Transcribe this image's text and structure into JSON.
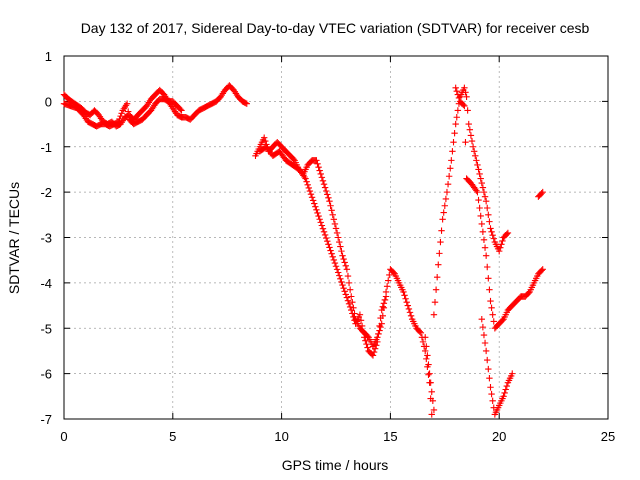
{
  "chart_data": {
    "type": "scatter",
    "title": "Day 132 of 2017, Sidereal Day-to-day VTEC variation (SDTVAR) for receiver cesb",
    "xlabel": "GPS time / hours",
    "ylabel": "SDTVAR / TECUs",
    "xlim": [
      0,
      25
    ],
    "ylim": [
      -7,
      1
    ],
    "xticks": [
      0,
      5,
      10,
      15,
      20,
      25
    ],
    "yticks": [
      1,
      0,
      -1,
      -2,
      -3,
      -4,
      -5,
      -6,
      -7
    ],
    "grid": true,
    "marker": "plus",
    "colors": {
      "series": "#ff0000",
      "grid": "#a0a0a0",
      "axes": "#000000"
    },
    "series": [
      {
        "segments": [
          [
            [
              0,
              0.15
            ],
            [
              0.2,
              0.05
            ],
            [
              0.5,
              -0.05
            ],
            [
              0.8,
              -0.15
            ],
            [
              1.0,
              -0.25
            ],
            [
              1.2,
              -0.3
            ],
            [
              1.4,
              -0.2
            ],
            [
              1.6,
              -0.3
            ],
            [
              1.8,
              -0.45
            ],
            [
              2.0,
              -0.5
            ],
            [
              2.2,
              -0.45
            ],
            [
              2.4,
              -0.55
            ],
            [
              2.6,
              -0.5
            ],
            [
              2.8,
              -0.35
            ],
            [
              3.0,
              -0.3
            ],
            [
              3.2,
              -0.4
            ],
            [
              3.4,
              -0.3
            ],
            [
              3.6,
              -0.2
            ],
            [
              3.8,
              -0.1
            ],
            [
              4.0,
              0.05
            ],
            [
              4.2,
              0.15
            ],
            [
              4.4,
              0.25
            ],
            [
              4.6,
              0.15
            ],
            [
              4.8,
              0.0
            ],
            [
              5.0,
              -0.15
            ],
            [
              5.2,
              -0.3
            ],
            [
              5.4,
              -0.35
            ],
            [
              5.6,
              -0.35
            ],
            [
              5.8,
              -0.4
            ],
            [
              6.0,
              -0.3
            ],
            [
              6.2,
              -0.2
            ],
            [
              6.4,
              -0.15
            ],
            [
              6.6,
              -0.1
            ],
            [
              6.8,
              -0.05
            ],
            [
              7.0,
              0.0
            ],
            [
              7.2,
              0.1
            ],
            [
              7.4,
              0.25
            ],
            [
              7.6,
              0.35
            ],
            [
              7.8,
              0.25
            ],
            [
              8.0,
              0.1
            ],
            [
              8.2,
              0.0
            ],
            [
              8.4,
              -0.05
            ]
          ],
          [
            [
              0,
              -0.05
            ],
            [
              0.3,
              -0.1
            ],
            [
              0.6,
              -0.15
            ],
            [
              0.9,
              -0.3
            ],
            [
              1.1,
              -0.45
            ],
            [
              1.3,
              -0.5
            ],
            [
              1.5,
              -0.55
            ],
            [
              1.7,
              -0.5
            ],
            [
              1.9,
              -0.5
            ],
            [
              2.1,
              -0.55
            ],
            [
              2.3,
              -0.5
            ],
            [
              2.5,
              -0.45
            ],
            [
              2.7,
              -0.2
            ],
            [
              2.9,
              -0.05
            ],
            [
              3.0,
              -0.4
            ],
            [
              3.2,
              -0.5
            ],
            [
              3.4,
              -0.45
            ],
            [
              3.6,
              -0.4
            ],
            [
              3.8,
              -0.3
            ],
            [
              4.0,
              -0.2
            ],
            [
              4.2,
              -0.05
            ],
            [
              4.4,
              0.05
            ],
            [
              4.6,
              0.05
            ],
            [
              4.8,
              0.0
            ],
            [
              5.0,
              0.0
            ],
            [
              5.2,
              -0.1
            ],
            [
              5.4,
              -0.2
            ]
          ],
          [
            [
              8.8,
              -1.2
            ],
            [
              9.0,
              -1.0
            ],
            [
              9.2,
              -0.8
            ],
            [
              9.4,
              -1.1
            ],
            [
              9.6,
              -1.0
            ],
            [
              9.8,
              -0.9
            ],
            [
              10.0,
              -1.0
            ],
            [
              10.2,
              -1.1
            ],
            [
              10.4,
              -1.2
            ],
            [
              10.6,
              -1.3
            ],
            [
              10.8,
              -1.5
            ],
            [
              11.0,
              -1.6
            ],
            [
              11.2,
              -1.4
            ],
            [
              11.4,
              -1.3
            ],
            [
              11.6,
              -1.3
            ],
            [
              11.8,
              -1.6
            ],
            [
              12.0,
              -1.9
            ],
            [
              12.2,
              -2.2
            ],
            [
              12.4,
              -2.6
            ],
            [
              12.6,
              -3.0
            ],
            [
              12.8,
              -3.4
            ],
            [
              13.0,
              -3.7
            ],
            [
              13.2,
              -4.3
            ],
            [
              13.4,
              -4.8
            ],
            [
              13.6,
              -5.0
            ],
            [
              13.8,
              -5.1
            ],
            [
              14.0,
              -5.2
            ],
            [
              14.2,
              -5.4
            ],
            [
              14.4,
              -5.2
            ],
            [
              14.6,
              -4.9
            ],
            [
              14.8,
              -4.2
            ],
            [
              15.0,
              -3.7
            ],
            [
              15.2,
              -3.8
            ],
            [
              15.4,
              -4.0
            ],
            [
              15.6,
              -4.2
            ],
            [
              15.8,
              -4.5
            ],
            [
              16.0,
              -4.8
            ],
            [
              16.2,
              -5.0
            ],
            [
              16.4,
              -5.1
            ],
            [
              16.6,
              -5.5
            ],
            [
              16.8,
              -6.2
            ],
            [
              16.9,
              -6.9
            ]
          ],
          [
            [
              9.0,
              -1.1
            ],
            [
              9.3,
              -1.0
            ],
            [
              9.6,
              -1.2
            ],
            [
              9.9,
              -1.1
            ],
            [
              10.2,
              -1.3
            ],
            [
              10.5,
              -1.4
            ],
            [
              10.8,
              -1.5
            ],
            [
              11.1,
              -1.7
            ],
            [
              13.2,
              -4.6
            ],
            [
              13.4,
              -4.9
            ],
            [
              13.6,
              -4.7
            ],
            [
              13.8,
              -5.2
            ],
            [
              14.0,
              -5.5
            ],
            [
              14.2,
              -5.6
            ],
            [
              14.4,
              -5.3
            ],
            [
              14.6,
              -4.6
            ],
            [
              14.8,
              -4.3
            ]
          ],
          [
            [
              16.6,
              -5.2
            ],
            [
              16.8,
              -6.0
            ],
            [
              17.0,
              -6.8
            ]
          ],
          [
            [
              17.0,
              -4.7
            ],
            [
              17.2,
              -3.6
            ],
            [
              17.4,
              -2.6
            ],
            [
              17.6,
              -2.0
            ],
            [
              17.8,
              -1.3
            ],
            [
              18.0,
              -0.5
            ],
            [
              18.2,
              0.1
            ],
            [
              18.4,
              0.3
            ],
            [
              18.5,
              0.1
            ],
            [
              18.6,
              -0.5
            ],
            [
              18.8,
              -1.0
            ],
            [
              19.0,
              -1.4
            ],
            [
              19.2,
              -1.8
            ],
            [
              19.4,
              -2.2
            ],
            [
              19.6,
              -2.8
            ],
            [
              19.8,
              -3.1
            ],
            [
              20.0,
              -3.3
            ],
            [
              20.2,
              -3.0
            ],
            [
              20.4,
              -2.9
            ]
          ],
          [
            [
              18.0,
              0.3
            ],
            [
              18.2,
              0.0
            ],
            [
              18.4,
              -0.1
            ],
            [
              18.5,
              -1.7
            ],
            [
              18.7,
              -1.8
            ],
            [
              19.0,
              -2.0
            ],
            [
              19.2,
              -2.7
            ],
            [
              19.4,
              -3.4
            ],
            [
              19.6,
              -4.4
            ],
            [
              19.8,
              -5.0
            ],
            [
              20.0,
              -4.9
            ],
            [
              20.2,
              -4.8
            ],
            [
              20.4,
              -4.6
            ],
            [
              20.6,
              -4.5
            ],
            [
              20.8,
              -4.4
            ],
            [
              21.0,
              -4.3
            ],
            [
              21.2,
              -4.3
            ],
            [
              21.4,
              -4.2
            ],
            [
              21.6,
              -4.0
            ],
            [
              21.8,
              -3.8
            ],
            [
              22.0,
              -3.7
            ]
          ],
          [
            [
              19.2,
              -4.8
            ],
            [
              19.4,
              -5.5
            ],
            [
              19.6,
              -6.3
            ],
            [
              19.8,
              -6.9
            ],
            [
              20.0,
              -6.7
            ],
            [
              20.2,
              -6.5
            ],
            [
              20.4,
              -6.2
            ],
            [
              20.6,
              -6.0
            ]
          ],
          [
            [
              21.8,
              -2.1
            ],
            [
              22.0,
              -2.0
            ]
          ]
        ]
      }
    ]
  }
}
